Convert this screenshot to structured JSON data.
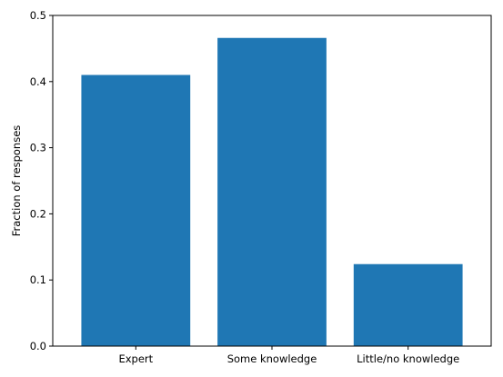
{
  "chart_data": {
    "type": "bar",
    "title": "",
    "xlabel": "",
    "ylabel": "Fraction of responses",
    "categories": [
      "Expert",
      "Some knowledge",
      "Little/no knowledge"
    ],
    "values": [
      0.41,
      0.466,
      0.124
    ],
    "ylim": [
      0,
      0.5
    ],
    "yticks": [
      0.0,
      0.1,
      0.2,
      0.3,
      0.4,
      0.5
    ],
    "ytick_labels": [
      "0.0",
      "0.1",
      "0.2",
      "0.3",
      "0.4",
      "0.5"
    ],
    "bar_color": "#1f77b4",
    "grid": false,
    "legend": "none"
  }
}
